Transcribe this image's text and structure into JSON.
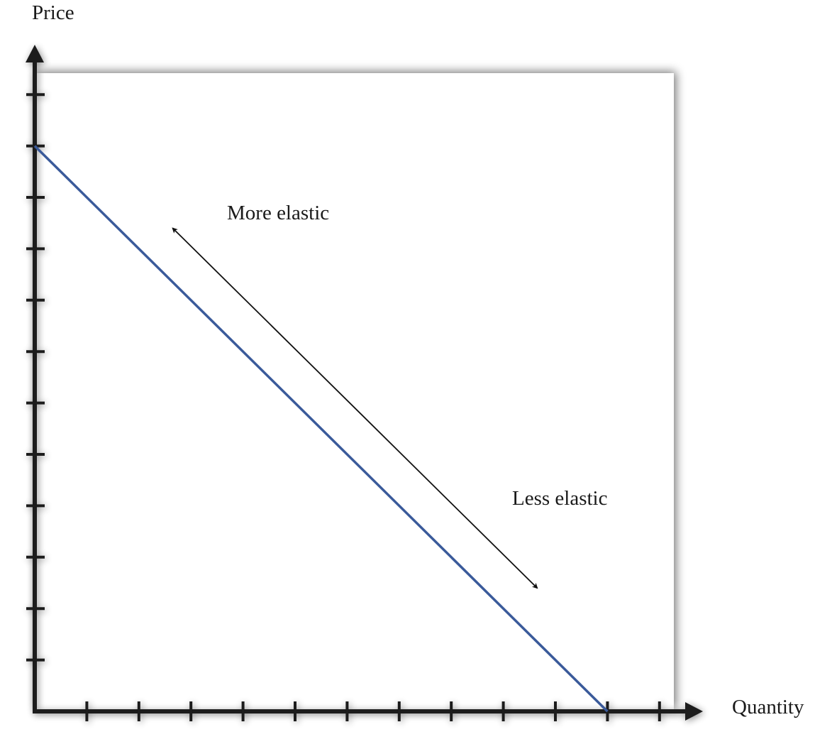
{
  "chart_data": {
    "type": "line",
    "xlabel": "Quantity",
    "ylabel": "Price",
    "xlim": [
      0,
      12
    ],
    "ylim": [
      0,
      12
    ],
    "x_ticks": [
      1,
      2,
      3,
      4,
      5,
      6,
      7,
      8,
      9,
      10,
      11,
      12
    ],
    "y_ticks": [
      1,
      2,
      3,
      4,
      5,
      6,
      7,
      8,
      9,
      10,
      11,
      12
    ],
    "grid": false,
    "series": [
      {
        "points": [
          [
            0,
            11
          ],
          [
            11,
            0
          ]
        ],
        "color": "#3a5a9a"
      }
    ],
    "annotations": [
      {
        "text": "More elastic",
        "position": "upper end of the double-headed arrow"
      },
      {
        "text": "Less elastic",
        "position": "lower end of the double-headed arrow"
      }
    ],
    "arrow": {
      "from": [
        2.65,
        9.4
      ],
      "to": [
        9.65,
        2.4
      ],
      "double_headed": true,
      "color": "#111111"
    }
  },
  "colors": {
    "axis": "#1a1a1a",
    "curve": "#3a5a9a",
    "panel": "#ffffff"
  }
}
